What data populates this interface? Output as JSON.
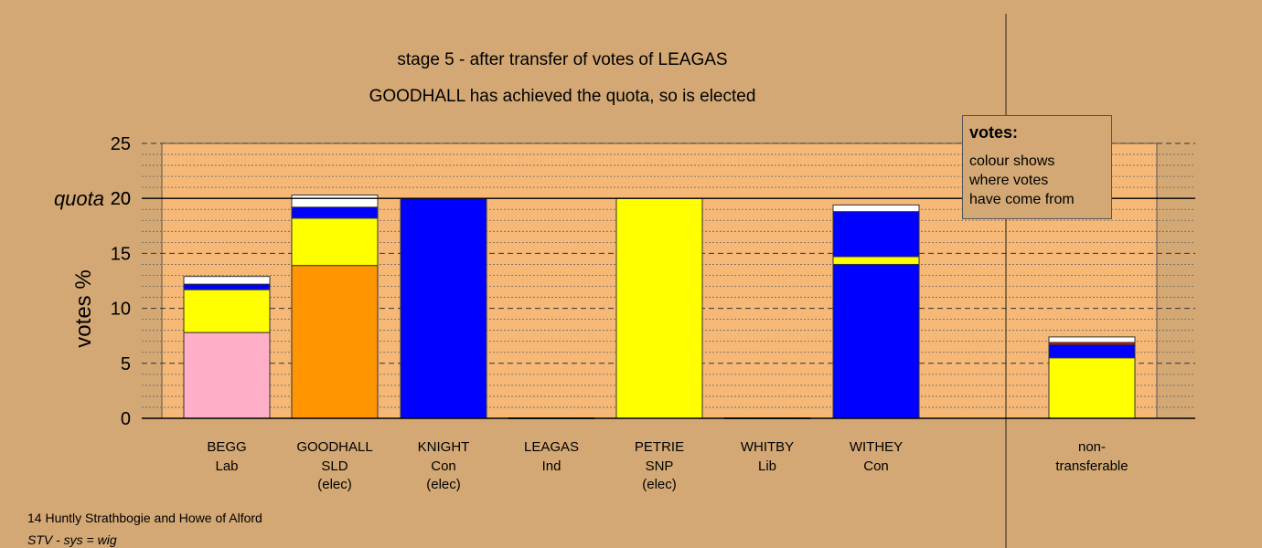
{
  "chart_data": {
    "type": "bar",
    "stacked": true,
    "title": "stage 5 - after transfer of votes of LEAGAS",
    "subtitle": "GOODHALL has achieved the quota, so is elected",
    "ylabel": "votes %",
    "ylim": [
      0,
      25
    ],
    "yticks": [
      "0",
      "5",
      "10",
      "15",
      "20",
      "25"
    ],
    "quota": 20,
    "quota_label": "quota",
    "grid": true,
    "categories": [
      {
        "name": "BEGG",
        "party": "Lab",
        "status": ""
      },
      {
        "name": "GOODHALL",
        "party": "SLD",
        "status": "(elec)"
      },
      {
        "name": "KNIGHT",
        "party": "Con",
        "status": "(elec)"
      },
      {
        "name": "LEAGAS",
        "party": "Ind",
        "status": ""
      },
      {
        "name": "PETRIE",
        "party": "SNP",
        "status": "(elec)"
      },
      {
        "name": "WHITBY",
        "party": "Lib",
        "status": ""
      },
      {
        "name": "WITHEY",
        "party": "Con",
        "status": ""
      },
      {
        "name": "non-",
        "party": "transferable",
        "status": ""
      }
    ],
    "stacks": [
      [
        {
          "value": 7.8,
          "color": "#ffb0c8"
        },
        {
          "value": 3.9,
          "color": "#ffff00"
        },
        {
          "value": 0.5,
          "color": "#0000ff"
        },
        {
          "value": 0.7,
          "color": "#ffffff"
        }
      ],
      [
        {
          "value": 13.9,
          "color": "#ff9500"
        },
        {
          "value": 4.3,
          "color": "#ffff00"
        },
        {
          "value": 1.0,
          "color": "#0000ff"
        },
        {
          "value": 1.1,
          "color": "#ffffff"
        }
      ],
      [
        {
          "value": 20.0,
          "color": "#0000ff"
        }
      ],
      [],
      [
        {
          "value": 20.0,
          "color": "#ffff00"
        }
      ],
      [],
      [
        {
          "value": 14.0,
          "color": "#0000ff"
        },
        {
          "value": 0.7,
          "color": "#ffff00"
        },
        {
          "value": 4.1,
          "color": "#0000ff"
        },
        {
          "value": 0.6,
          "color": "#ffffff"
        }
      ],
      [
        {
          "value": 5.5,
          "color": "#ffff00"
        },
        {
          "value": 1.2,
          "color": "#0000ff"
        },
        {
          "value": 0.2,
          "color": "#ff0000"
        },
        {
          "value": 0.5,
          "color": "#ffffff"
        }
      ]
    ],
    "legend": {
      "title": "votes:",
      "lines": [
        "colour shows",
        "where votes",
        "have come from"
      ],
      "placement": "top-right"
    },
    "footer": {
      "line1": "14 Huntly Strathbogie and Howe of Alford",
      "line2": "STV - sys = wig"
    },
    "colors": {
      "background": "#d3a874",
      "plot_area": "#f5b877"
    }
  }
}
